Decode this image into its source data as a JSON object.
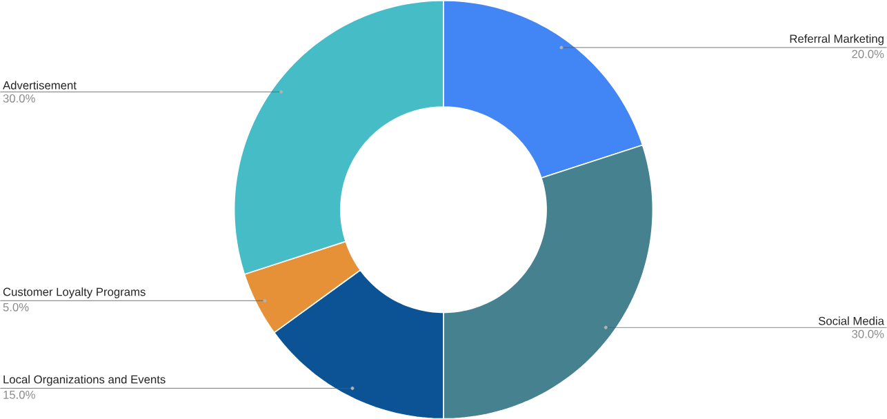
{
  "chart_data": {
    "type": "donut",
    "categories": [
      "Referral Marketing",
      "Social Media",
      "Local Organizations and Events",
      "Customer Loyalty Programs",
      "Advertisement"
    ],
    "values": [
      20,
      30,
      15,
      5,
      30
    ],
    "value_labels": [
      "20.0%",
      "30.0%",
      "15.0%",
      "5.0%",
      "30.0%"
    ],
    "colors": [
      "#4285f4",
      "#45818e",
      "#0b5394",
      "#e69138",
      "#46bdc6"
    ]
  }
}
